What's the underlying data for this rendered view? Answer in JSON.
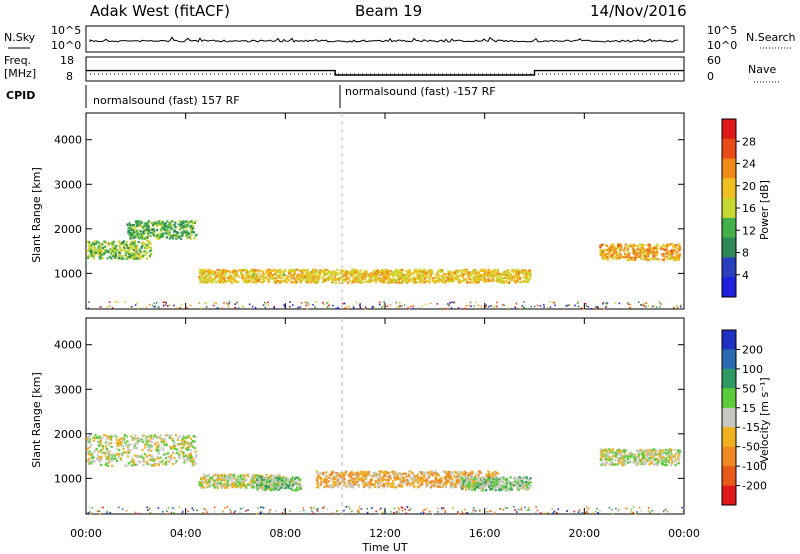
{
  "header": {
    "station": "Adak West (fitACF)",
    "beam": "Beam 19",
    "date": "14/Nov/2016"
  },
  "status_panel": {
    "nsky_label": "N.Sky",
    "nsearch_label": "N.Search",
    "freq_label_line1": "Freq.",
    "freq_label_line2": "[MHz]",
    "nave_label": "Nave",
    "cpid_label": "CPID",
    "power_tick_top": "10^5",
    "power_tick_bottom": "10^0",
    "freq_ticks": [
      "18",
      "8"
    ],
    "nave_ticks": [
      "60",
      "0"
    ],
    "cpid_segments": [
      {
        "label": "normalsound (fast) 157 RF",
        "start_hour": 0,
        "end_hour": 10
      },
      {
        "label": "normalsound (fast) -157 RF",
        "start_hour": 10,
        "end_hour": 24
      }
    ],
    "freq_steps": [
      {
        "start_hour": 0,
        "end_hour": 10,
        "freq_mhz": 13.2
      },
      {
        "start_hour": 10,
        "end_hour": 18,
        "freq_mhz": 11.0
      },
      {
        "start_hour": 18,
        "end_hour": 24,
        "freq_mhz": 13.2
      }
    ]
  },
  "axes": {
    "time_ticks": [
      "00:00",
      "04:00",
      "08:00",
      "12:00",
      "16:00",
      "20:00",
      "00:00"
    ],
    "time_label": "Time UT",
    "range_ticks": [
      "1000",
      "2000",
      "3000",
      "4000"
    ],
    "range_label": "Slant Range [km]"
  },
  "colorbars": {
    "power": {
      "label": "Power [dB]",
      "ticks": [
        "4",
        "8",
        "12",
        "16",
        "20",
        "24",
        "28"
      ],
      "colors": [
        "#1f1fe0",
        "#2a3fbd",
        "#2e8a55",
        "#44b04a",
        "#c8d630",
        "#f0c020",
        "#f08a18",
        "#e84b18",
        "#e01818"
      ]
    },
    "velocity": {
      "label": "Velocity [m s⁻¹]",
      "ticks": [
        "200",
        "100",
        "50",
        "15",
        "-15",
        "-50",
        "-100",
        "-200"
      ],
      "colors": [
        "#2030c0",
        "#2a6ab0",
        "#2e9a60",
        "#5ccd3a",
        "#c8c8c0",
        "#f0b020",
        "#f08a20",
        "#e85a18",
        "#e01818"
      ]
    }
  },
  "chart_data": [
    {
      "type": "heatmap",
      "title": "",
      "quantity": "Power",
      "unit": "dB",
      "xlabel": "Time UT",
      "ylabel": "Slant Range [km]",
      "xlim_hours": [
        0,
        24
      ],
      "ylim_km": [
        200,
        4600
      ],
      "clim_db": [
        0,
        32
      ],
      "scatter_regions": [
        {
          "name": "early",
          "start_hour": 0.0,
          "end_hour": 2.6,
          "center_km": 1550,
          "width_km": 200,
          "value_db": 14
        },
        {
          "name": "early-upper",
          "start_hour": 1.6,
          "end_hour": 4.4,
          "center_km": 2000,
          "width_km": 200,
          "value_db": 12
        },
        {
          "name": "day",
          "start_hour": 4.5,
          "end_hour": 17.8,
          "center_km": 960,
          "width_km": 150,
          "value_db": 19
        },
        {
          "name": "evening",
          "start_hour": 20.6,
          "end_hour": 23.8,
          "center_km": 1500,
          "width_km": 180,
          "value_db": 21
        }
      ]
    },
    {
      "type": "heatmap",
      "title": "",
      "quantity": "Velocity",
      "unit": "m s⁻¹",
      "xlabel": "Time UT",
      "ylabel": "Slant Range [km]",
      "xlim_hours": [
        0,
        24
      ],
      "ylim_km": [
        200,
        4600
      ],
      "clim_ms": [
        -250,
        250
      ],
      "scatter_regions": [
        {
          "name": "early",
          "start_hour": 0.0,
          "end_hour": 4.4,
          "center_km": 1650,
          "width_km": 350,
          "value_ms": 0
        },
        {
          "name": "day-west",
          "start_hour": 4.5,
          "end_hour": 8.0,
          "center_km": 960,
          "width_km": 150,
          "value_ms": 0
        },
        {
          "name": "day-green",
          "start_hour": 6.8,
          "end_hour": 8.6,
          "center_km": 900,
          "width_km": 150,
          "value_ms": 40
        },
        {
          "name": "day-center",
          "start_hour": 9.2,
          "end_hour": 16.5,
          "center_km": 1000,
          "width_km": 180,
          "value_ms": -60
        },
        {
          "name": "day-east",
          "start_hour": 15.0,
          "end_hour": 17.8,
          "center_km": 900,
          "width_km": 150,
          "value_ms": 40
        },
        {
          "name": "evening",
          "start_hour": 20.6,
          "end_hour": 23.8,
          "center_km": 1500,
          "width_km": 180,
          "value_ms": 0
        }
      ]
    }
  ]
}
